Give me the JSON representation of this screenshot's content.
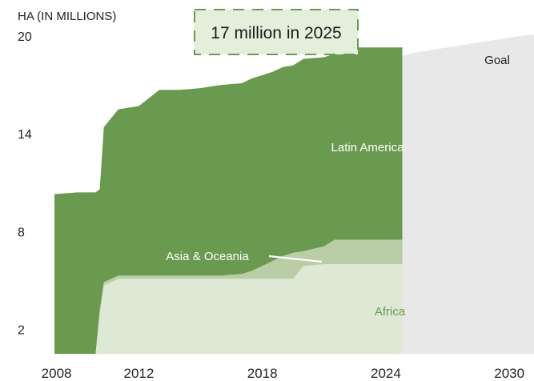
{
  "chart_data": {
    "type": "area",
    "stacked": true,
    "ylabel": "HA (IN MILLIONS)",
    "y_ticks": [
      "20",
      "14",
      "8",
      "2"
    ],
    "y_tick_values": [
      20,
      14,
      8,
      2
    ],
    "x_ticks": [
      "2008",
      "2012",
      "2018",
      "2024",
      "2030"
    ],
    "x_tick_values": [
      2008,
      2012,
      2018,
      2024,
      2030
    ],
    "ylim": [
      0.5,
      20
    ],
    "xlim": [
      2007.9,
      2031.2
    ],
    "callout": "17 million in 2025",
    "annotation": "Asia & Oceania",
    "x": [
      2007.9,
      2009.0,
      2009.9,
      2010.1,
      2010.3,
      2011.0,
      2012.0,
      2013.0,
      2014.0,
      2015.0,
      2016.0,
      2017.0,
      2017.5,
      2018.0,
      2018.5,
      2019.0,
      2019.5,
      2020.0,
      2021.0,
      2021.5,
      2022.0,
      2023.0,
      2024.0,
      2024.8
    ],
    "series": [
      {
        "name": "Africa",
        "color": "#dde8d5",
        "values": [
          0,
          0,
          0,
          2.5,
          4.2,
          4.6,
          4.6,
          4.6,
          4.6,
          4.6,
          4.6,
          4.6,
          4.6,
          4.6,
          4.6,
          4.6,
          4.6,
          5.4,
          5.5,
          5.5,
          5.5,
          5.5,
          5.5,
          5.5
        ]
      },
      {
        "name": "Asia & Oceania",
        "color": "#b9cea6",
        "values": [
          0,
          0,
          0,
          0.2,
          0.2,
          0.2,
          0.2,
          0.2,
          0.2,
          0.2,
          0.2,
          0.3,
          0.5,
          0.8,
          1.1,
          1.4,
          1.6,
          0.9,
          1.1,
          1.5,
          1.5,
          1.5,
          1.5,
          1.5
        ]
      },
      {
        "name": "Latin America",
        "color": "#6a9a50",
        "values": [
          9.8,
          9.9,
          9.9,
          7.4,
          9.5,
          10.2,
          10.4,
          11.4,
          11.4,
          11.5,
          11.7,
          11.7,
          11.8,
          11.7,
          11.6,
          11.6,
          11.5,
          11.8,
          11.6,
          11.4,
          11.8,
          11.8,
          11.8,
          11.8
        ]
      }
    ],
    "goal": {
      "name": "Goal",
      "color": "#e8e8e8",
      "x": [
        2024.8,
        2025.5,
        2026.5,
        2027.5,
        2028.5,
        2029.5,
        2030.5,
        2031.2
      ],
      "values": [
        18.8,
        19.0,
        19.2,
        19.4,
        19.6,
        19.8,
        20.0,
        20.1
      ]
    }
  }
}
